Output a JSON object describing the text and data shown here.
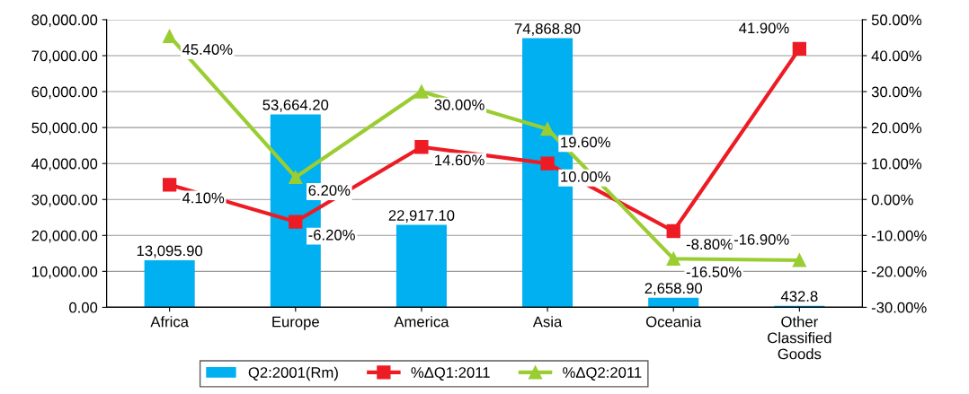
{
  "chart_data": {
    "type": "bar",
    "categories": [
      "Africa",
      "Europe",
      "America",
      "Asia",
      "Oceania",
      "Other\nClassified\nGoods"
    ],
    "series": [
      {
        "name": "Q2:2001(Rm)",
        "color": "#00b0f0",
        "values": [
          13095.9,
          53664.2,
          22917.1,
          74868.8,
          2658.9,
          432.8
        ],
        "value_labels": [
          "13,095.90",
          "53,664.20",
          "22,917.10",
          "74,868.80",
          "2,658.90",
          "432.8"
        ]
      },
      {
        "name": "%ΔQ1:2011",
        "type": "line",
        "axis": "y2",
        "marker": "square",
        "color": "#ed1c24",
        "values": [
          4.1,
          -6.2,
          14.6,
          10.0,
          -8.8,
          41.9
        ],
        "value_labels": [
          "4.10%",
          "-6.20%",
          "14.60%",
          "10.00%",
          "-8.80%",
          "41.90%"
        ]
      },
      {
        "name": "%ΔQ2:2011",
        "type": "line",
        "axis": "y2",
        "marker": "triangle",
        "color": "#9acd32",
        "values": [
          45.4,
          6.2,
          30.0,
          19.6,
          -16.5,
          -16.9
        ],
        "value_labels": [
          "45.40%",
          "6.20%",
          "30.00%",
          "19.60%",
          "-16.50%",
          "-16.90%"
        ]
      }
    ],
    "ylim": [
      0,
      80000
    ],
    "yticks": [
      {
        "value": 0,
        "label": "0.00"
      },
      {
        "value": 10000,
        "label": "10,000.00"
      },
      {
        "value": 20000,
        "label": "20,000.00"
      },
      {
        "value": 30000,
        "label": "30,000.00"
      },
      {
        "value": 40000,
        "label": "40,000.00"
      },
      {
        "value": 50000,
        "label": "50,000.00"
      },
      {
        "value": 60000,
        "label": "60,000.00"
      },
      {
        "value": 70000,
        "label": "70,000.00"
      },
      {
        "value": 80000,
        "label": "80,000.00"
      }
    ],
    "y2lim": [
      -30,
      50
    ],
    "y2ticks": [
      {
        "value": -30,
        "label": "-30.00%"
      },
      {
        "value": -20,
        "label": "-20.00%"
      },
      {
        "value": -10,
        "label": "-10.00%"
      },
      {
        "value": 0,
        "label": "0.00%"
      },
      {
        "value": 10,
        "label": "10.00%"
      },
      {
        "value": 20,
        "label": "20.00%"
      },
      {
        "value": 30,
        "label": "30.00%"
      },
      {
        "value": 40,
        "label": "40.00%"
      },
      {
        "value": 50,
        "label": "50.00%"
      }
    ],
    "grid": "y",
    "legend": "bottom"
  }
}
